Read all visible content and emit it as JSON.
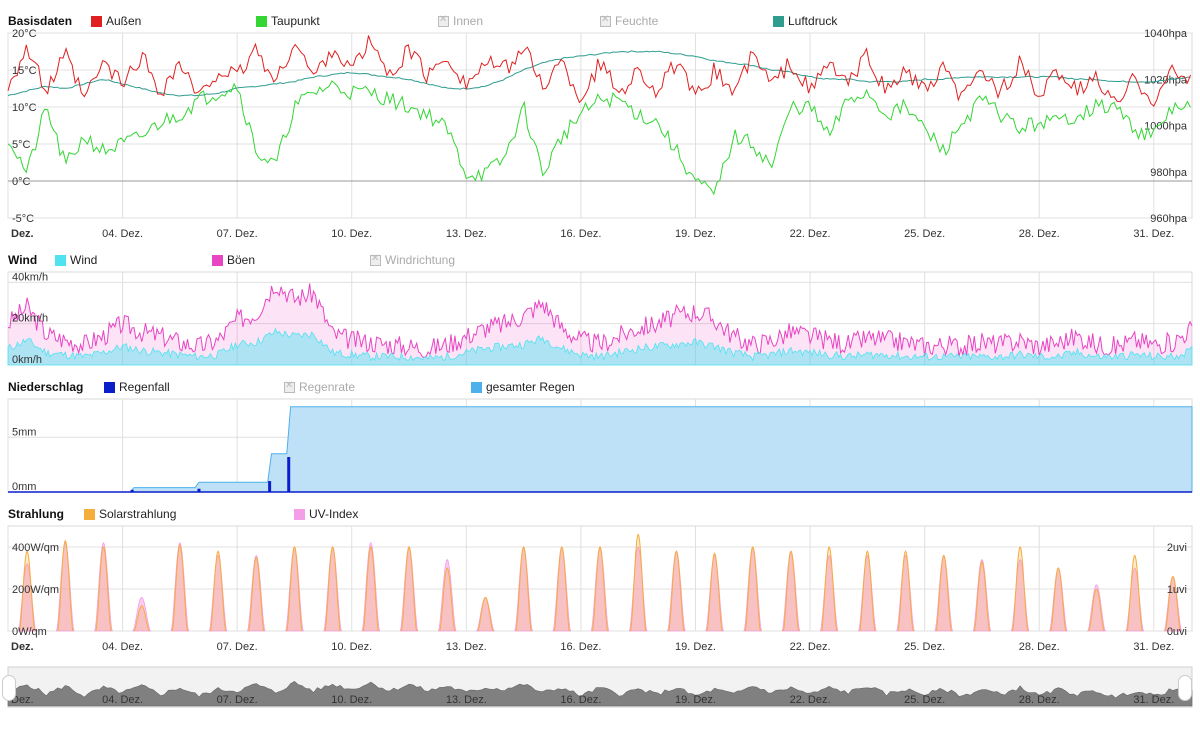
{
  "colors": {
    "aussen": "#e02020",
    "taupunkt": "#33d633",
    "luftdruck": "#2e9c8f",
    "wind": "#4fe3f0",
    "boeen": "#e845c4",
    "regenfall": "#0a1fc8",
    "gesamter_regen": "#4cb0ec",
    "solar": "#f5ad3c",
    "uv": "#f59ee8",
    "grid": "#e0e0e0",
    "navigator": "#808080"
  },
  "legends": {
    "basis": {
      "title": "Basisdaten",
      "items": [
        {
          "label": "Außen",
          "color_key": "aussen",
          "enabled": true
        },
        {
          "label": "Taupunkt",
          "color_key": "taupunkt",
          "enabled": true
        },
        {
          "label": "Innen",
          "color_key": "",
          "enabled": false
        },
        {
          "label": "Feuchte",
          "color_key": "",
          "enabled": false
        },
        {
          "label": "Luftdruck",
          "color_key": "luftdruck",
          "enabled": true
        }
      ]
    },
    "wind": {
      "title": "Wind",
      "items": [
        {
          "label": "Wind",
          "color_key": "wind",
          "enabled": true
        },
        {
          "label": "Böen",
          "color_key": "boeen",
          "enabled": true
        },
        {
          "label": "Windrichtung",
          "color_key": "",
          "enabled": false
        }
      ]
    },
    "rain": {
      "title": "Niederschlag",
      "items": [
        {
          "label": "Regenfall",
          "color_key": "regenfall",
          "enabled": true
        },
        {
          "label": "Regenrate",
          "color_key": "",
          "enabled": false
        },
        {
          "label": "gesamter Regen",
          "color_key": "gesamter_regen",
          "enabled": true
        }
      ]
    },
    "solar": {
      "title": "Strahlung",
      "items": [
        {
          "label": "Solarstrahlung",
          "color_key": "solar",
          "enabled": true
        },
        {
          "label": "UV-Index",
          "color_key": "uv",
          "enabled": true
        }
      ]
    }
  },
  "x_axis": {
    "first_label": "Dez.",
    "labels": [
      "04. Dez.",
      "07. Dez.",
      "10. Dez.",
      "13. Dez.",
      "16. Dez.",
      "19. Dez.",
      "22. Dez.",
      "25. Dez.",
      "28. Dez.",
      "31. Dez."
    ],
    "label_days": [
      4,
      7,
      10,
      13,
      16,
      19,
      22,
      25,
      28,
      31
    ],
    "xlim": [
      1,
      32
    ]
  },
  "chart_data": [
    {
      "type": "line",
      "title": "Basisdaten",
      "y_left": {
        "ticks": [
          "20°C",
          "15°C",
          "10°C",
          "5°C",
          "0°C",
          "-5°C"
        ],
        "tick_values": [
          20,
          15,
          10,
          5,
          0,
          -5
        ],
        "ylim": [
          -5,
          20
        ]
      },
      "y_right": {
        "ticks": [
          "1040hpa",
          "1020hpa",
          "1000hpa",
          "980hpa",
          "960hpa"
        ],
        "tick_values": [
          1040,
          1020,
          1000,
          980,
          960
        ],
        "ylim": [
          960,
          1040
        ]
      },
      "series": [
        {
          "name": "Außen",
          "axis": "left",
          "x": [
            1.0,
            1.5,
            2.0,
            2.5,
            3.0,
            3.5,
            4.0,
            4.5,
            5.0,
            5.5,
            6.0,
            6.5,
            7.0,
            7.5,
            8.0,
            8.5,
            9.0,
            9.5,
            10.0,
            10.5,
            11.0,
            11.5,
            12.0,
            12.5,
            13.0,
            13.5,
            14.0,
            14.5,
            15.0,
            15.5,
            16.0,
            16.5,
            17.0,
            17.5,
            18.0,
            18.5,
            19.0,
            19.5,
            20.0,
            20.5,
            21.0,
            21.5,
            22.0,
            22.5,
            23.0,
            23.5,
            24.0,
            24.5,
            25.0,
            25.5,
            26.0,
            26.5,
            27.0,
            27.5,
            28.0,
            28.5,
            29.0,
            29.5,
            30.0,
            30.5,
            31.0,
            31.5,
            32.0
          ],
          "values": [
            13,
            18,
            12,
            17,
            11,
            16,
            13,
            17,
            12,
            16,
            11,
            15,
            14,
            18,
            13,
            19,
            14,
            18,
            15,
            19,
            14,
            18,
            14,
            17,
            13,
            16,
            15,
            18,
            13,
            16,
            11,
            16,
            12,
            15,
            12,
            16,
            11,
            15,
            12,
            17,
            13,
            16,
            12,
            16,
            13,
            17,
            12,
            15,
            12,
            15,
            11,
            15,
            12,
            16,
            11,
            15,
            12,
            14,
            10,
            14,
            11,
            15,
            13
          ]
        },
        {
          "name": "Taupunkt",
          "axis": "left",
          "x": [
            1.0,
            1.5,
            2.0,
            2.5,
            3.0,
            3.5,
            4.0,
            4.5,
            5.0,
            5.5,
            6.0,
            6.5,
            7.0,
            7.5,
            8.0,
            8.5,
            9.0,
            9.5,
            10.0,
            10.5,
            11.0,
            11.5,
            12.0,
            12.5,
            13.0,
            13.5,
            14.0,
            14.5,
            15.0,
            15.5,
            16.0,
            16.5,
            17.0,
            17.5,
            18.0,
            18.5,
            19.0,
            19.5,
            20.0,
            20.5,
            21.0,
            21.5,
            22.0,
            22.5,
            23.0,
            23.5,
            24.0,
            24.5,
            25.0,
            25.5,
            26.0,
            26.5,
            27.0,
            27.5,
            28.0,
            28.5,
            29.0,
            29.5,
            30.0,
            30.5,
            31.0,
            31.5,
            32.0
          ],
          "values": [
            6,
            1,
            10,
            2,
            6,
            4,
            5,
            6,
            8,
            9,
            11,
            12,
            13,
            4,
            2,
            10,
            12,
            13,
            12,
            12,
            11,
            10,
            9,
            7,
            1,
            1,
            3,
            10,
            1,
            6,
            9,
            11,
            11,
            9,
            8,
            4,
            0,
            -2,
            6,
            5,
            2,
            10,
            10,
            6,
            11,
            12,
            9,
            10,
            7,
            4,
            8,
            11,
            9,
            7,
            8,
            8,
            9,
            10,
            10,
            7,
            6,
            10,
            10
          ]
        },
        {
          "name": "Luftdruck",
          "axis": "right",
          "x": [
            1.0,
            1.5,
            2.0,
            2.5,
            3.0,
            3.5,
            4.0,
            4.5,
            5.0,
            5.5,
            6.0,
            6.5,
            7.0,
            7.5,
            8.0,
            8.5,
            9.0,
            9.5,
            10.0,
            10.5,
            11.0,
            11.5,
            12.0,
            12.5,
            13.0,
            13.5,
            14.0,
            14.5,
            15.0,
            15.5,
            16.0,
            16.5,
            17.0,
            17.5,
            18.0,
            18.5,
            19.0,
            19.5,
            20.0,
            20.5,
            21.0,
            21.5,
            22.0,
            22.5,
            23.0,
            23.5,
            24.0,
            24.5,
            25.0,
            25.5,
            26.0,
            26.5,
            27.0,
            27.5,
            28.0,
            28.5,
            29.0,
            29.5,
            30.0,
            30.5,
            31.0,
            31.5,
            32.0
          ],
          "values": [
            1013,
            1015,
            1017,
            1016,
            1018,
            1020,
            1018,
            1016,
            1014,
            1013,
            1013,
            1014,
            1016,
            1017,
            1018,
            1019,
            1021,
            1022,
            1023,
            1022,
            1021,
            1020,
            1018,
            1016,
            1016,
            1017,
            1020,
            1024,
            1027,
            1029,
            1030,
            1031,
            1032,
            1032,
            1032,
            1031,
            1030,
            1028,
            1027,
            1026,
            1024,
            1023,
            1021,
            1020,
            1020,
            1019,
            1019,
            1019,
            1020,
            1020,
            1021,
            1021,
            1021,
            1021,
            1021,
            1021,
            1020,
            1020,
            1019,
            1019,
            1019,
            1020,
            1021
          ]
        }
      ]
    },
    {
      "type": "area",
      "title": "Wind",
      "y_left": {
        "ticks": [
          "40km/h",
          "20km/h",
          "0km/h"
        ],
        "tick_values": [
          40,
          20,
          0
        ],
        "ylim": [
          0,
          45
        ]
      },
      "series": [
        {
          "name": "Böen",
          "x": [
            1.0,
            1.5,
            2.0,
            2.5,
            3.0,
            3.5,
            4.0,
            4.5,
            5.0,
            5.5,
            6.0,
            6.5,
            7.0,
            7.5,
            8.0,
            8.5,
            9.0,
            9.5,
            10.0,
            10.5,
            11.0,
            11.5,
            12.0,
            12.5,
            13.0,
            13.5,
            14.0,
            14.5,
            15.0,
            15.5,
            16.0,
            16.5,
            17.0,
            17.5,
            18.0,
            18.5,
            19.0,
            19.5,
            20.0,
            20.5,
            21.0,
            21.5,
            22.0,
            22.5,
            23.0,
            23.5,
            24.0,
            24.5,
            25.0,
            25.5,
            26.0,
            26.5,
            27.0,
            27.5,
            28.0,
            28.5,
            29.0,
            29.5,
            30.0,
            30.5,
            31.0,
            31.5,
            32.0
          ],
          "values": [
            20,
            28,
            15,
            12,
            10,
            14,
            20,
            16,
            14,
            11,
            9,
            12,
            22,
            25,
            40,
            32,
            35,
            15,
            12,
            11,
            10,
            9,
            8,
            10,
            14,
            18,
            20,
            24,
            30,
            18,
            12,
            10,
            14,
            18,
            20,
            24,
            26,
            22,
            14,
            10,
            12,
            16,
            14,
            12,
            10,
            13,
            12,
            11,
            9,
            10,
            9,
            11,
            10,
            12,
            9,
            11,
            14,
            10,
            9,
            12,
            10,
            11,
            18
          ]
        },
        {
          "name": "Wind",
          "x": [
            1.0,
            1.5,
            2.0,
            2.5,
            3.0,
            3.5,
            4.0,
            4.5,
            5.0,
            5.5,
            6.0,
            6.5,
            7.0,
            7.5,
            8.0,
            8.5,
            9.0,
            9.5,
            10.0,
            10.5,
            11.0,
            11.5,
            12.0,
            12.5,
            13.0,
            13.5,
            14.0,
            14.5,
            15.0,
            15.5,
            16.0,
            16.5,
            17.0,
            17.5,
            18.0,
            18.5,
            19.0,
            19.5,
            20.0,
            20.5,
            21.0,
            21.5,
            22.0,
            22.5,
            23.0,
            23.5,
            24.0,
            24.5,
            25.0,
            25.5,
            26.0,
            26.5,
            27.0,
            27.5,
            28.0,
            28.5,
            29.0,
            29.5,
            30.0,
            30.5,
            31.0,
            31.5,
            32.0
          ],
          "values": [
            8,
            12,
            6,
            5,
            4,
            6,
            9,
            7,
            6,
            5,
            4,
            5,
            10,
            11,
            16,
            14,
            15,
            6,
            5,
            4,
            4,
            4,
            3,
            4,
            6,
            8,
            9,
            10,
            13,
            8,
            5,
            4,
            6,
            8,
            9,
            10,
            11,
            9,
            6,
            4,
            5,
            7,
            6,
            5,
            4,
            5,
            5,
            4,
            4,
            4,
            4,
            4,
            4,
            5,
            4,
            4,
            6,
            4,
            4,
            5,
            4,
            4,
            7
          ]
        }
      ]
    },
    {
      "type": "area",
      "title": "Niederschlag",
      "y_left": {
        "ticks": [
          "5mm",
          "0mm"
        ],
        "tick_values": [
          5,
          0
        ],
        "ylim": [
          0,
          8.5
        ]
      },
      "series": [
        {
          "name": "gesamter Regen",
          "x": [
            1.0,
            4.2,
            4.3,
            5.9,
            6.0,
            7.8,
            7.9,
            8.3,
            8.4,
            32.0
          ],
          "values": [
            0,
            0,
            0.4,
            0.4,
            0.9,
            0.9,
            3.5,
            3.5,
            7.8,
            7.8
          ]
        },
        {
          "name": "Regenfall",
          "x": [
            4.25,
            6.0,
            7.85,
            8.35
          ],
          "values": [
            0.2,
            0.3,
            1.0,
            3.2
          ]
        }
      ]
    },
    {
      "type": "area",
      "title": "Strahlung",
      "y_left": {
        "ticks": [
          "400W/qm",
          "200W/qm",
          "0W/qm"
        ],
        "tick_values": [
          400,
          200,
          0
        ],
        "ylim": [
          0,
          500
        ]
      },
      "y_right": {
        "ticks": [
          "2uvi",
          "1uvi",
          "0uvi"
        ],
        "tick_values": [
          2,
          1,
          0
        ],
        "ylim": [
          0,
          2.5
        ]
      },
      "series": [
        {
          "name": "Solarstrahlung",
          "x": [
            1.5,
            2.5,
            3.5,
            4.5,
            5.5,
            6.5,
            7.5,
            8.5,
            9.5,
            10.5,
            11.5,
            12.5,
            13.5,
            14.5,
            15.5,
            16.5,
            17.5,
            18.5,
            19.5,
            20.5,
            21.5,
            22.5,
            23.5,
            24.5,
            25.5,
            26.5,
            27.5,
            28.5,
            29.5,
            30.5,
            31.5
          ],
          "values": [
            380,
            430,
            400,
            120,
            410,
            380,
            350,
            400,
            400,
            400,
            400,
            300,
            160,
            400,
            400,
            400,
            460,
            380,
            370,
            400,
            380,
            400,
            380,
            380,
            360,
            330,
            400,
            300,
            200,
            360,
            260
          ]
        },
        {
          "name": "UV-Index",
          "x": [
            1.5,
            2.5,
            3.5,
            4.5,
            5.5,
            6.5,
            7.5,
            8.5,
            9.5,
            10.5,
            11.5,
            12.5,
            13.5,
            14.5,
            15.5,
            16.5,
            17.5,
            18.5,
            19.5,
            20.5,
            21.5,
            22.5,
            23.5,
            24.5,
            25.5,
            26.5,
            27.5,
            28.5,
            29.5,
            30.5,
            31.5
          ],
          "values": [
            1.6,
            2.1,
            2.1,
            0.8,
            2.1,
            1.8,
            1.8,
            2.0,
            2.0,
            2.1,
            2.0,
            1.7,
            0.8,
            2.0,
            2.0,
            2.0,
            2.0,
            1.9,
            1.8,
            2.0,
            1.9,
            1.8,
            1.8,
            1.8,
            1.8,
            1.7,
            1.7,
            1.5,
            1.1,
            1.5,
            1.3
          ]
        }
      ]
    }
  ]
}
